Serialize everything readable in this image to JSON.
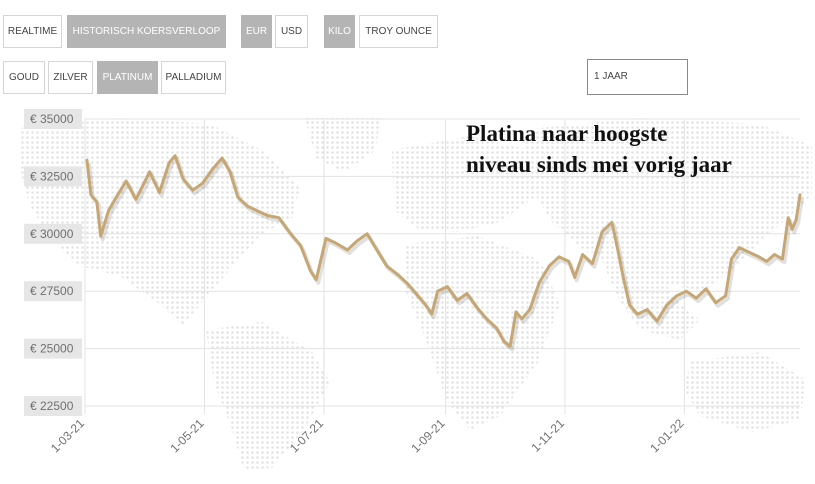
{
  "tabs_row1": [
    {
      "id": "realtime",
      "label": "REALTIME",
      "active": false
    },
    {
      "id": "historisch",
      "label": "HISTORISCH KOERSVERLOOP",
      "active": true
    },
    {
      "id": "eur",
      "label": "EUR",
      "active": true
    },
    {
      "id": "usd",
      "label": "USD",
      "active": false
    },
    {
      "id": "kilo",
      "label": "KILO",
      "active": true
    },
    {
      "id": "troy",
      "label": "TROY OUNCE",
      "active": false
    }
  ],
  "tabs_row2": [
    {
      "id": "goud",
      "label": "GOUD",
      "active": false
    },
    {
      "id": "zilver",
      "label": "ZILVER",
      "active": false
    },
    {
      "id": "platinum",
      "label": "PLATINUM",
      "active": true
    },
    {
      "id": "palladium",
      "label": "PALLADIUM",
      "active": false
    }
  ],
  "range_select": {
    "value": "1 JAAR"
  },
  "headline": {
    "line1": "Platina naar hoogste",
    "line2": "niveau sinds mei vorig jaar"
  },
  "colors": {
    "line": "#c6a773",
    "grid": "#e3e3e3",
    "tick_bg": "#e6e6e6",
    "tick_text": "#707070",
    "map": "#d9d9d9"
  },
  "chart_data": {
    "type": "line",
    "title": "",
    "xlabel": "",
    "ylabel": "",
    "ylim": [
      22500,
      35000
    ],
    "y_ticks": [
      35000,
      32500,
      30000,
      27500,
      25000,
      22500
    ],
    "y_tick_labels": [
      "€ 35000",
      "€ 32500",
      "€ 30000",
      "€ 27500",
      "€ 25000",
      "€ 22500"
    ],
    "x_range": [
      "2021-03-01",
      "2022-03-01"
    ],
    "x_ticks": [
      "2021-03-01",
      "2021-05-01",
      "2021-07-01",
      "2021-09-01",
      "2021-11-01",
      "2022-01-01"
    ],
    "x_tick_labels": [
      "1-03-21",
      "1-05-21",
      "1-07-21",
      "1-09-21",
      "1-11-21",
      "1-01-22"
    ],
    "grid": true,
    "series": [
      {
        "values": [
          [
            "2021-03-02",
            33200
          ],
          [
            "2021-03-04",
            31700
          ],
          [
            "2021-03-07",
            31400
          ],
          [
            "2021-03-09",
            29900
          ],
          [
            "2021-03-13",
            31000
          ],
          [
            "2021-03-17",
            31600
          ],
          [
            "2021-03-22",
            32300
          ],
          [
            "2021-03-27",
            31500
          ],
          [
            "2021-04-03",
            32700
          ],
          [
            "2021-04-08",
            31800
          ],
          [
            "2021-04-13",
            33100
          ],
          [
            "2021-04-16",
            33400
          ],
          [
            "2021-04-20",
            32400
          ],
          [
            "2021-04-25",
            31900
          ],
          [
            "2021-04-30",
            32200
          ],
          [
            "2021-05-05",
            32800
          ],
          [
            "2021-05-10",
            33300
          ],
          [
            "2021-05-14",
            32700
          ],
          [
            "2021-05-18",
            31600
          ],
          [
            "2021-05-23",
            31200
          ],
          [
            "2021-05-28",
            31000
          ],
          [
            "2021-06-02",
            30800
          ],
          [
            "2021-06-08",
            30700
          ],
          [
            "2021-06-14",
            30000
          ],
          [
            "2021-06-19",
            29500
          ],
          [
            "2021-06-24",
            28400
          ],
          [
            "2021-06-27",
            28000
          ],
          [
            "2021-07-02",
            29800
          ],
          [
            "2021-07-07",
            29600
          ],
          [
            "2021-07-13",
            29300
          ],
          [
            "2021-07-18",
            29700
          ],
          [
            "2021-07-23",
            30000
          ],
          [
            "2021-07-28",
            29300
          ],
          [
            "2021-08-02",
            28600
          ],
          [
            "2021-08-08",
            28200
          ],
          [
            "2021-08-13",
            27800
          ],
          [
            "2021-08-18",
            27300
          ],
          [
            "2021-08-22",
            26900
          ],
          [
            "2021-08-25",
            26500
          ],
          [
            "2021-08-28",
            27500
          ],
          [
            "2021-09-02",
            27700
          ],
          [
            "2021-09-07",
            27100
          ],
          [
            "2021-09-12",
            27400
          ],
          [
            "2021-09-17",
            26800
          ],
          [
            "2021-09-22",
            26300
          ],
          [
            "2021-09-27",
            25900
          ],
          [
            "2021-10-01",
            25300
          ],
          [
            "2021-10-04",
            25100
          ],
          [
            "2021-10-07",
            26600
          ],
          [
            "2021-10-10",
            26300
          ],
          [
            "2021-10-14",
            26700
          ],
          [
            "2021-10-19",
            27900
          ],
          [
            "2021-10-24",
            28600
          ],
          [
            "2021-10-29",
            29000
          ],
          [
            "2021-11-03",
            28800
          ],
          [
            "2021-11-06",
            28100
          ],
          [
            "2021-11-10",
            29100
          ],
          [
            "2021-11-15",
            28700
          ],
          [
            "2021-11-20",
            30100
          ],
          [
            "2021-11-25",
            30500
          ],
          [
            "2021-11-28",
            29300
          ],
          [
            "2021-12-01",
            28000
          ],
          [
            "2021-12-04",
            26900
          ],
          [
            "2021-12-08",
            26500
          ],
          [
            "2021-12-13",
            26700
          ],
          [
            "2021-12-18",
            26200
          ],
          [
            "2021-12-23",
            26900
          ],
          [
            "2021-12-28",
            27300
          ],
          [
            "2022-01-02",
            27500
          ],
          [
            "2022-01-07",
            27200
          ],
          [
            "2022-01-12",
            27600
          ],
          [
            "2022-01-17",
            27000
          ],
          [
            "2022-01-22",
            27300
          ],
          [
            "2022-01-25",
            28900
          ],
          [
            "2022-01-29",
            29400
          ],
          [
            "2022-02-03",
            29200
          ],
          [
            "2022-02-08",
            29000
          ],
          [
            "2022-02-12",
            28800
          ],
          [
            "2022-02-16",
            29100
          ],
          [
            "2022-02-20",
            28900
          ],
          [
            "2022-02-23",
            30700
          ],
          [
            "2022-02-25",
            30200
          ],
          [
            "2022-02-27",
            30600
          ],
          [
            "2022-03-01",
            31700
          ]
        ]
      }
    ]
  }
}
